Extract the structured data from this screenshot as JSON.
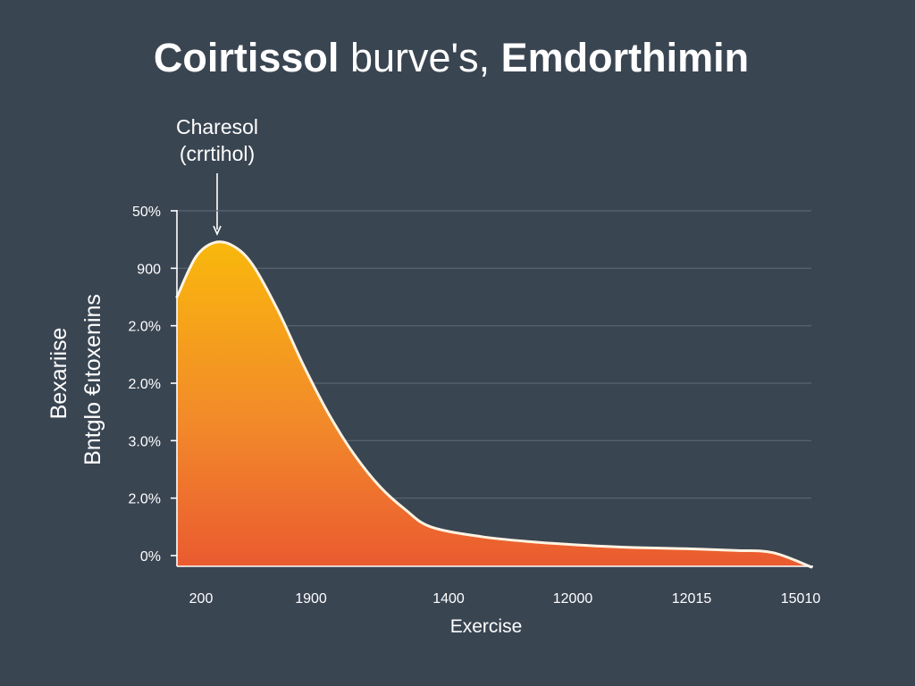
{
  "title": {
    "part1": "Coirtissol ",
    "part2": "burve's,",
    "part3": " Emdorthimin"
  },
  "annotation": {
    "line1": "Charesol",
    "line2": "(crrtihol)"
  },
  "chart_data": {
    "type": "area",
    "xlabel": "Exercise",
    "ylabel_line1": "Bexariise",
    "ylabel_line2": "Bntglo €ıtoxenins",
    "x_tick_labels": [
      "200",
      "1900",
      "1400",
      "12000",
      "12015",
      "15010"
    ],
    "y_tick_labels": [
      "50%",
      "900",
      "2.0%",
      "2.0%",
      "3.0%",
      "2.0%",
      "0%"
    ],
    "y_range_index": [
      0,
      6
    ],
    "x_range_index": [
      0,
      5
    ],
    "grid": true,
    "series": [
      {
        "name": "Charesol (crrtihol)",
        "points": [
          [
            0.0,
            4.5
          ],
          [
            0.15,
            5.2
          ],
          [
            0.3,
            5.45
          ],
          [
            0.45,
            5.38
          ],
          [
            0.6,
            5.05
          ],
          [
            0.8,
            4.25
          ],
          [
            1.0,
            3.3
          ],
          [
            1.2,
            2.45
          ],
          [
            1.4,
            1.75
          ],
          [
            1.6,
            1.2
          ],
          [
            1.8,
            0.8
          ],
          [
            2.0,
            0.5
          ],
          [
            2.4,
            0.33
          ],
          [
            2.8,
            0.24
          ],
          [
            3.2,
            0.18
          ],
          [
            3.6,
            0.14
          ],
          [
            4.0,
            0.12
          ],
          [
            4.4,
            0.09
          ],
          [
            4.7,
            0.05
          ],
          [
            5.0,
            -0.2
          ]
        ]
      }
    ],
    "peak_annotation_x": 0.25,
    "colors": {
      "fill_top": "#f9b80c",
      "fill_mid": "#f28a2a",
      "fill_bottom": "#ea5a30",
      "outline": "#fff3e2"
    }
  }
}
